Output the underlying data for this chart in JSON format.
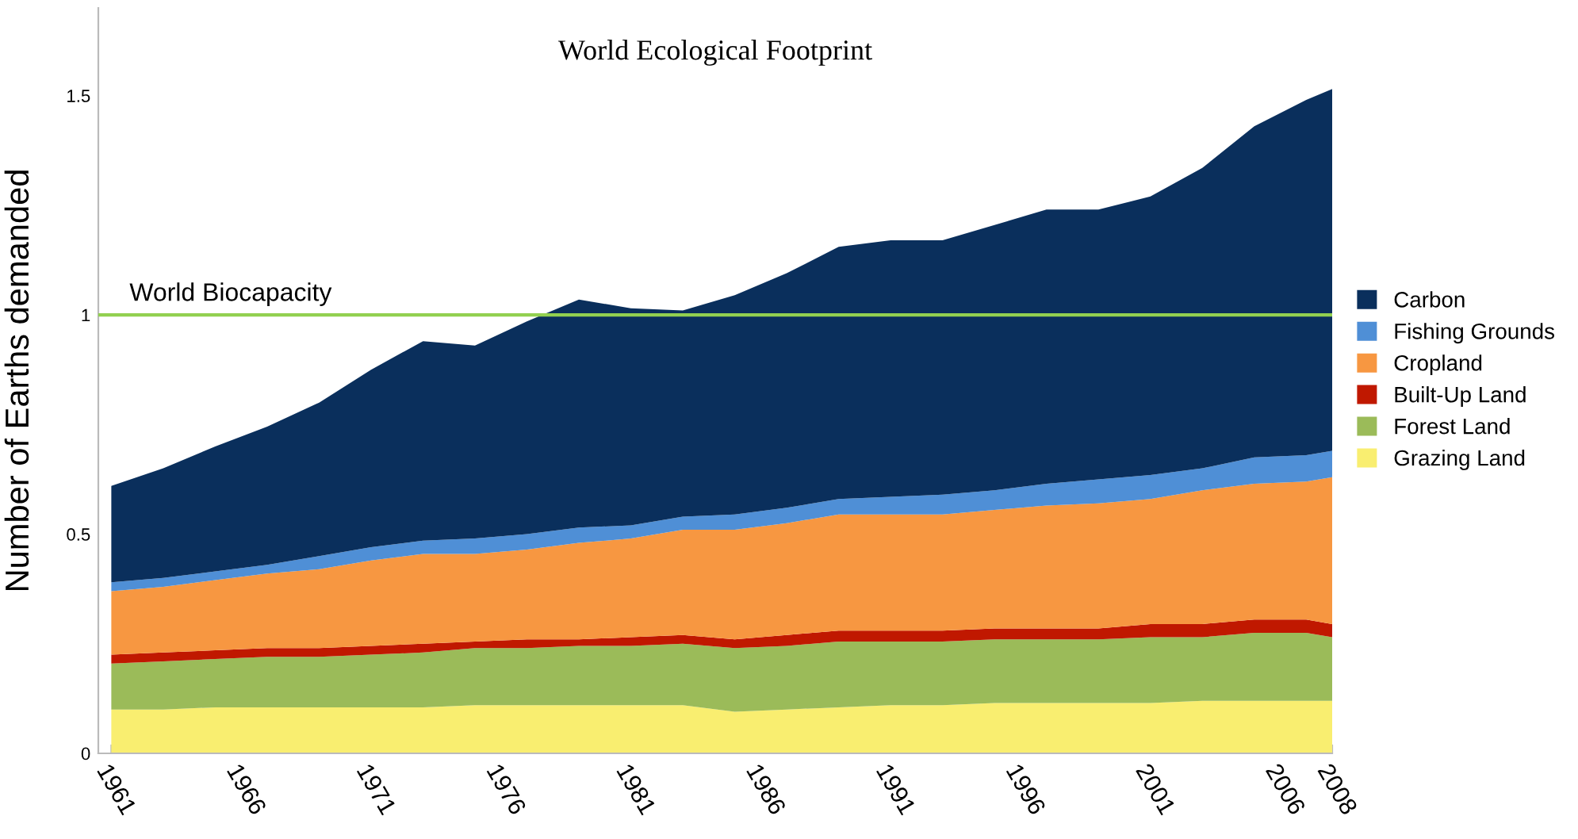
{
  "chart_data": {
    "type": "area",
    "stacked": true,
    "title": "World Ecological Footprint",
    "ylabel": "Number of Earths demanded",
    "x": [
      1961,
      1963,
      1965,
      1967,
      1969,
      1971,
      1973,
      1975,
      1977,
      1979,
      1981,
      1983,
      1985,
      1987,
      1989,
      1991,
      1993,
      1995,
      1997,
      1999,
      2001,
      2003,
      2005,
      2007,
      2008
    ],
    "series": [
      {
        "name": "Grazing Land",
        "color": "#f9ee70",
        "values": [
          0.1,
          0.1,
          0.105,
          0.105,
          0.105,
          0.105,
          0.105,
          0.11,
          0.11,
          0.11,
          0.11,
          0.11,
          0.095,
          0.1,
          0.105,
          0.11,
          0.11,
          0.115,
          0.115,
          0.115,
          0.115,
          0.12,
          0.12,
          0.12,
          0.12
        ]
      },
      {
        "name": "Forest Land",
        "color": "#9bbb59",
        "values": [
          0.105,
          0.11,
          0.11,
          0.115,
          0.115,
          0.12,
          0.125,
          0.13,
          0.13,
          0.135,
          0.135,
          0.14,
          0.145,
          0.145,
          0.15,
          0.145,
          0.145,
          0.145,
          0.145,
          0.145,
          0.15,
          0.145,
          0.155,
          0.155,
          0.145
        ]
      },
      {
        "name": "Built-Up Land",
        "color": "#c01800",
        "values": [
          0.02,
          0.02,
          0.02,
          0.02,
          0.02,
          0.02,
          0.02,
          0.015,
          0.02,
          0.015,
          0.02,
          0.02,
          0.02,
          0.025,
          0.025,
          0.025,
          0.025,
          0.025,
          0.025,
          0.025,
          0.03,
          0.03,
          0.03,
          0.03,
          0.03
        ]
      },
      {
        "name": "Cropland",
        "color": "#f79741",
        "values": [
          0.145,
          0.15,
          0.16,
          0.17,
          0.18,
          0.195,
          0.205,
          0.2,
          0.205,
          0.22,
          0.225,
          0.24,
          0.25,
          0.255,
          0.265,
          0.265,
          0.265,
          0.27,
          0.28,
          0.285,
          0.285,
          0.305,
          0.31,
          0.315,
          0.335
        ]
      },
      {
        "name": "Fishing Grounds",
        "color": "#4f8fd6",
        "values": [
          0.02,
          0.02,
          0.02,
          0.02,
          0.03,
          0.03,
          0.03,
          0.035,
          0.035,
          0.035,
          0.03,
          0.03,
          0.035,
          0.035,
          0.035,
          0.04,
          0.045,
          0.045,
          0.05,
          0.055,
          0.055,
          0.05,
          0.06,
          0.06,
          0.06
        ]
      },
      {
        "name": "Carbon",
        "color": "#0a2f5c",
        "values": [
          0.22,
          0.25,
          0.285,
          0.315,
          0.35,
          0.405,
          0.455,
          0.44,
          0.485,
          0.52,
          0.495,
          0.47,
          0.5,
          0.535,
          0.575,
          0.585,
          0.58,
          0.605,
          0.625,
          0.615,
          0.635,
          0.685,
          0.755,
          0.81,
          0.825
        ]
      }
    ],
    "xlim": [
      1960.5,
      2008
    ],
    "xticks": [
      1961,
      1966,
      1971,
      1976,
      1981,
      1986,
      1991,
      1996,
      2001,
      2006,
      2008
    ],
    "ylim": [
      0,
      1.7
    ],
    "yticks": [
      0,
      0.5,
      1,
      1.5
    ],
    "ref_lines": [
      {
        "axis": "y",
        "value": 1,
        "label": "World Biocapacity",
        "color": "#92d050"
      }
    ],
    "grid": false,
    "legend": "right"
  }
}
